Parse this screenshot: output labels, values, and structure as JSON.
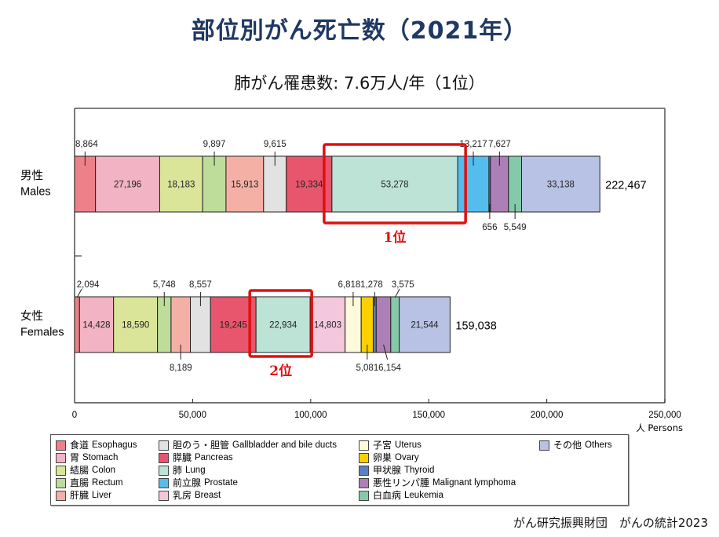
{
  "title": "部位別がん死亡数（2021年）",
  "subtitle": "肺がん罹患数:  7.6万人/年（1位）",
  "source": "がん研究振興財団　がんの統計2023",
  "chart_data": {
    "type": "bar",
    "orientation": "horizontal-stacked",
    "title": "部位別がん死亡数（2021年）",
    "xlabel": "人 Persons",
    "xlim": [
      0,
      250000
    ],
    "xticks": [
      0,
      50000,
      100000,
      150000,
      200000,
      250000
    ],
    "xtick_labels": [
      "0",
      "50,000",
      "100,000",
      "150,000",
      "200,000",
      "250,000"
    ],
    "categories": [
      {
        "key": "esophagus",
        "ja": "食道",
        "en": "Esophagus",
        "color": "#ee8089"
      },
      {
        "key": "stomach",
        "ja": "胃",
        "en": "Stomach",
        "color": "#f2b3c4"
      },
      {
        "key": "colon",
        "ja": "結腸",
        "en": "Colon",
        "color": "#dbe59a"
      },
      {
        "key": "rectum",
        "ja": "直腸",
        "en": "Rectum",
        "color": "#bedc9a"
      },
      {
        "key": "liver",
        "ja": "肝臓",
        "en": "Liver",
        "color": "#f4b0a4"
      },
      {
        "key": "gallbladder",
        "ja": "胆のう・胆管",
        "en": "Gallbladder and bile ducts",
        "color": "#e2e2e2"
      },
      {
        "key": "pancreas",
        "ja": "膵臓",
        "en": "Pancreas",
        "color": "#e8566d"
      },
      {
        "key": "lung",
        "ja": "肺",
        "en": "Lung",
        "color": "#bde2d6"
      },
      {
        "key": "prostate",
        "ja": "前立腺",
        "en": "Prostate",
        "color": "#55bdee"
      },
      {
        "key": "breast",
        "ja": "乳房",
        "en": "Breast",
        "color": "#f4c8dc"
      },
      {
        "key": "uterus",
        "ja": "子宮",
        "en": "Uterus",
        "color": "#fdfadc"
      },
      {
        "key": "ovary",
        "ja": "卵巣",
        "en": "Ovary",
        "color": "#fbd000"
      },
      {
        "key": "thyroid",
        "ja": "甲状腺",
        "en": "Thyroid",
        "color": "#5b7fc6"
      },
      {
        "key": "lymphoma",
        "ja": "悪性リンパ腫",
        "en": "Malignant lymphoma",
        "color": "#ad7fb7"
      },
      {
        "key": "leukemia",
        "ja": "白血病",
        "en": "Leukemia",
        "color": "#84c9a9"
      },
      {
        "key": "others",
        "ja": "その他",
        "en": "Others",
        "color": "#b8c2e4"
      }
    ],
    "series": [
      {
        "name_ja": "男性",
        "name_en": "Males",
        "total": 222467,
        "total_label": "222,467",
        "segments": [
          {
            "key": "esophagus",
            "value": 8864,
            "label": "8,864",
            "pos": "above"
          },
          {
            "key": "stomach",
            "value": 27196,
            "label": "27,196",
            "pos": "inside"
          },
          {
            "key": "colon",
            "value": 18183,
            "label": "18,183",
            "pos": "inside"
          },
          {
            "key": "rectum",
            "value": 9897,
            "label": "9,897",
            "pos": "above"
          },
          {
            "key": "liver",
            "value": 15913,
            "label": "15,913",
            "pos": "inside"
          },
          {
            "key": "gallbladder",
            "value": 9615,
            "label": "9,615",
            "pos": "above"
          },
          {
            "key": "pancreas",
            "value": 19334,
            "label": "19,334",
            "pos": "inside"
          },
          {
            "key": "lung",
            "value": 53278,
            "label": "53,278",
            "pos": "inside"
          },
          {
            "key": "prostate",
            "value": 13217,
            "label": "13,217",
            "pos": "above"
          },
          {
            "key": "thyroid",
            "value": 656,
            "label": "656",
            "pos": "below"
          },
          {
            "key": "lymphoma",
            "value": 7627,
            "label": "7,627",
            "pos": "above"
          },
          {
            "key": "leukemia",
            "value": 5549,
            "label": "5,549",
            "pos": "below"
          },
          {
            "key": "others",
            "value": 33138,
            "label": "33,138",
            "pos": "inside"
          }
        ],
        "highlight": {
          "key": "lung",
          "label": "1位"
        }
      },
      {
        "name_ja": "女性",
        "name_en": "Females",
        "total": 159038,
        "total_label": "159,038",
        "segments": [
          {
            "key": "esophagus",
            "value": 2094,
            "label": "2,094",
            "pos": "above"
          },
          {
            "key": "stomach",
            "value": 14428,
            "label": "14,428",
            "pos": "inside"
          },
          {
            "key": "colon",
            "value": 18590,
            "label": "18,590",
            "pos": "inside"
          },
          {
            "key": "rectum",
            "value": 5748,
            "label": "5,748",
            "pos": "above"
          },
          {
            "key": "liver",
            "value": 8189,
            "label": "8,189",
            "pos": "below"
          },
          {
            "key": "gallbladder",
            "value": 8557,
            "label": "8,557",
            "pos": "above"
          },
          {
            "key": "pancreas",
            "value": 19245,
            "label": "19,245",
            "pos": "inside"
          },
          {
            "key": "lung",
            "value": 22934,
            "label": "22,934",
            "pos": "inside"
          },
          {
            "key": "breast",
            "value": 14803,
            "label": "14,803",
            "pos": "inside"
          },
          {
            "key": "uterus",
            "value": 6818,
            "label": "6,818",
            "pos": "above"
          },
          {
            "key": "ovary",
            "value": 5081,
            "label": "5,081",
            "pos": "below"
          },
          {
            "key": "thyroid",
            "value": 1278,
            "label": "1,278",
            "pos": "above"
          },
          {
            "key": "lymphoma",
            "value": 6154,
            "label": "6,154",
            "pos": "below"
          },
          {
            "key": "leukemia",
            "value": 3575,
            "label": "3,575",
            "pos": "above"
          },
          {
            "key": "others",
            "value": 21544,
            "label": "21,544",
            "pos": "inside"
          }
        ],
        "highlight": {
          "key": "lung",
          "label": "2位"
        }
      }
    ],
    "legend_position": "bottom",
    "highlight_color": "#e01010"
  }
}
